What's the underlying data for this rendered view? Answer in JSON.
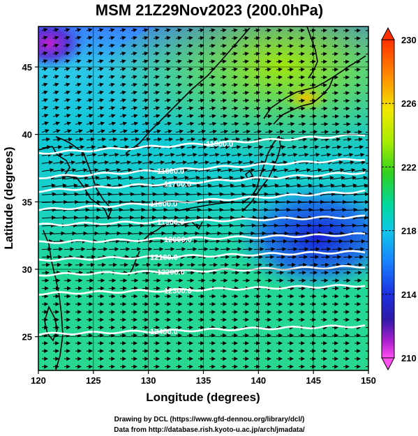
{
  "title": "MSM 21Z29Nov2023 (200.0hPa)",
  "xlabel": "Longitude (degrees)",
  "ylabel": "Latitude  (degrees)",
  "credits": [
    "Drawing by DCL (https://www.gfd-dennou.org/library/dcl/)",
    "Data from http://database.rish.kyoto-u.ac.jp/arch/jmadata/"
  ],
  "map": {
    "lon_range": [
      120,
      150
    ],
    "lat_range": [
      22.5,
      48
    ],
    "lon_ticks": [
      "120",
      "125",
      "130",
      "135",
      "140",
      "145",
      "150"
    ],
    "lat_ticks": [
      "25",
      "30",
      "35",
      "40",
      "45"
    ],
    "shaded_field": "temperature",
    "colorbar": {
      "min": 210,
      "max": 230,
      "labels": [
        "230",
        "226",
        "222",
        "218",
        "214",
        "210"
      ],
      "colors": [
        "#ff2a00",
        "#ff8a00",
        "#ffe000",
        "#c8f000",
        "#40d000",
        "#00d8a0",
        "#10d0e0",
        "#1890ff",
        "#1a40e8",
        "#2020c0",
        "#8020c0",
        "#ff40ff"
      ]
    },
    "contours": [
      {
        "label": "11500.0",
        "lat": 39.3
      },
      {
        "label": "11600.0",
        "lat": 37.5
      },
      {
        "label": "11700.0",
        "lat": 36.5
      },
      {
        "label": "11800.0",
        "lat": 35.1
      },
      {
        "label": "11900.0",
        "lat": 33.6
      },
      {
        "label": "12000.0",
        "lat": 32.3
      },
      {
        "label": "12100.0",
        "lat": 31.0
      },
      {
        "label": "12200.0",
        "lat": 29.9
      },
      {
        "label": "12300.0",
        "lat": 28.5
      },
      {
        "label": "12400.0",
        "lat": 25.5
      }
    ],
    "wind_vectors": "westerly, stronger near 35N"
  }
}
